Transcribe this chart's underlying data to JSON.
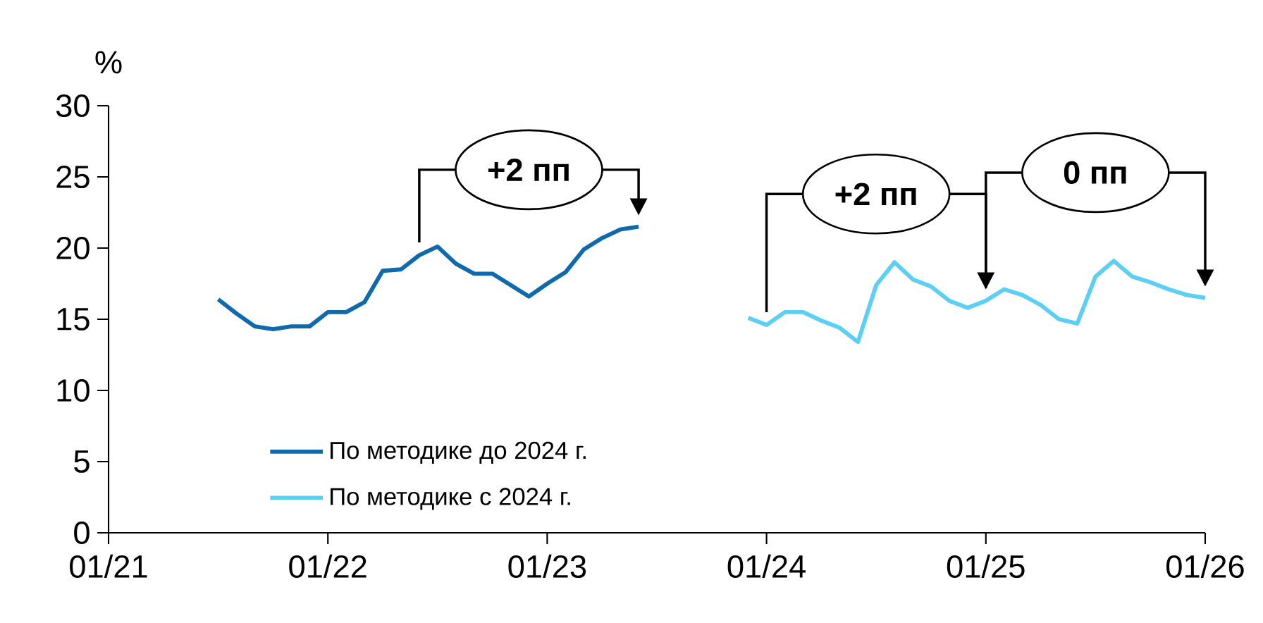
{
  "chart_data": {
    "type": "line",
    "ylabel": "%",
    "xlim": [
      "2021-01",
      "2026-01"
    ],
    "xticks": [
      {
        "value": "2021-01",
        "label": "01/21"
      },
      {
        "value": "2022-01",
        "label": "01/22"
      },
      {
        "value": "2023-01",
        "label": "01/23"
      },
      {
        "value": "2024-01",
        "label": "01/24"
      },
      {
        "value": "2025-01",
        "label": "01/25"
      },
      {
        "value": "2026-01",
        "label": "01/26"
      }
    ],
    "ylim": [
      0,
      30
    ],
    "yticks": [
      0,
      5,
      10,
      15,
      20,
      25,
      30
    ],
    "legend": "bottom left",
    "marker": "none",
    "line_style": "solid",
    "grid": false,
    "series": [
      {
        "name": "По методике до 2024 г.",
        "color": "#0f6aad",
        "x": [
          "2021-07",
          "2021-08",
          "2021-09",
          "2021-10",
          "2021-11",
          "2021-12",
          "2022-01",
          "2022-02",
          "2022-03",
          "2022-04",
          "2022-05",
          "2022-06",
          "2022-07",
          "2022-08",
          "2022-09",
          "2022-10",
          "2022-11",
          "2022-12",
          "2023-01",
          "2023-02",
          "2023-03",
          "2023-04",
          "2023-05",
          "2023-06"
        ],
        "values": [
          16.4,
          15.4,
          14.5,
          14.3,
          14.5,
          14.5,
          15.5,
          15.5,
          16.2,
          18.4,
          18.5,
          19.5,
          20.1,
          18.9,
          18.2,
          18.2,
          17.4,
          16.6,
          17.5,
          18.3,
          19.9,
          20.7,
          21.3,
          21.5
        ]
      },
      {
        "name": "По методике с 2024 г.",
        "color": "#5ccff5",
        "x": [
          "2023-12",
          "2024-01",
          "2024-02",
          "2024-03",
          "2024-04",
          "2024-05",
          "2024-06",
          "2024-07",
          "2024-08",
          "2024-09",
          "2024-10",
          "2024-11",
          "2024-12",
          "2025-01",
          "2025-02",
          "2025-03",
          "2025-04",
          "2025-05",
          "2025-06",
          "2025-07",
          "2025-08",
          "2025-09",
          "2025-10",
          "2025-11",
          "2025-12",
          "2026-01"
        ],
        "values": [
          15.1,
          14.6,
          15.5,
          15.5,
          14.9,
          14.4,
          13.4,
          17.4,
          19.0,
          17.8,
          17.3,
          16.3,
          15.8,
          16.3,
          17.1,
          16.7,
          16.0,
          15.0,
          14.7,
          18.0,
          19.1,
          18.0,
          17.6,
          17.1,
          16.7,
          16.5
        ]
      }
    ],
    "annotations": [
      "**+2 пп**",
      "**+2 пп**",
      "**0 пп**"
    ]
  }
}
